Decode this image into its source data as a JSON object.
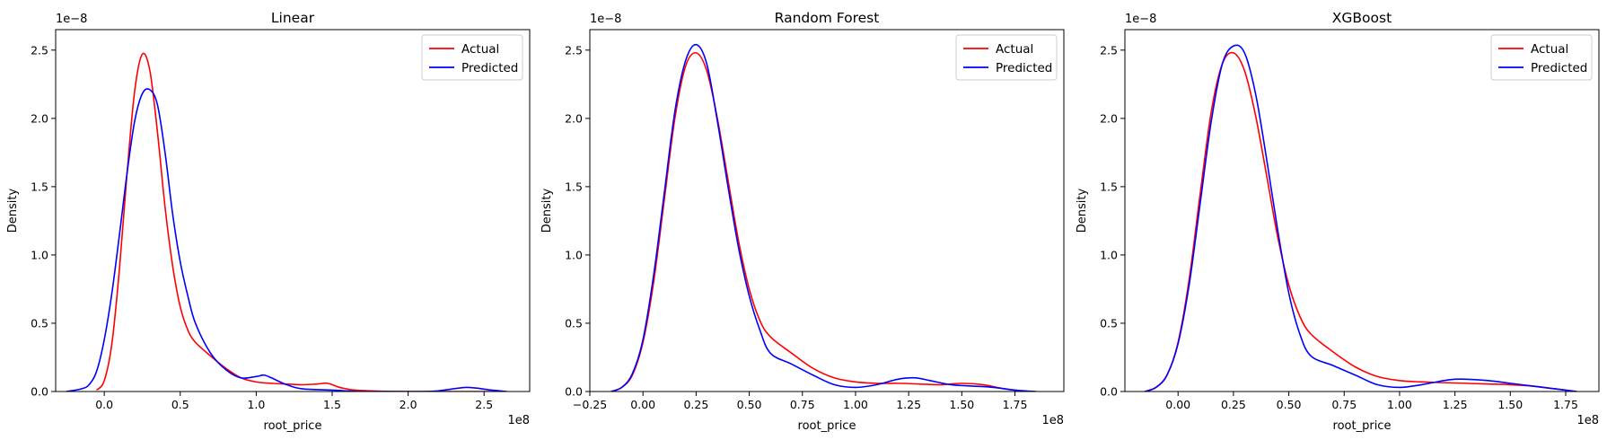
{
  "chart_data": [
    {
      "type": "line",
      "title": "Linear",
      "xlabel": "root_price",
      "ylabel": "Density",
      "x_offset_label": "1e8",
      "y_offset_label": "1e−8",
      "xlim": [
        -0.32,
        2.8
      ],
      "ylim": [
        0,
        2.65
      ],
      "xticks": [
        0.0,
        0.5,
        1.0,
        1.5,
        2.0,
        2.5
      ],
      "xtick_labels": [
        "0.0",
        "0.5",
        "1.0",
        "1.5",
        "2.0",
        "2.5"
      ],
      "yticks": [
        0.0,
        0.5,
        1.0,
        1.5,
        2.0,
        2.5
      ],
      "ytick_labels": [
        "0.0",
        "0.5",
        "1.0",
        "1.5",
        "2.0",
        "2.5"
      ],
      "legend_position": "top-right",
      "series": [
        {
          "name": "Actual",
          "color": "#ff0000",
          "x": [
            -0.05,
            0.0,
            0.05,
            0.1,
            0.15,
            0.2,
            0.25,
            0.3,
            0.35,
            0.4,
            0.45,
            0.5,
            0.55,
            0.6,
            0.7,
            0.8,
            0.9,
            1.0,
            1.1,
            1.2,
            1.3,
            1.4,
            1.47,
            1.55,
            1.65,
            1.8,
            2.0,
            2.2,
            2.4,
            2.6
          ],
          "y": [
            0.01,
            0.08,
            0.35,
            0.9,
            1.6,
            2.2,
            2.47,
            2.35,
            1.9,
            1.35,
            0.92,
            0.62,
            0.45,
            0.36,
            0.26,
            0.17,
            0.1,
            0.07,
            0.06,
            0.055,
            0.05,
            0.055,
            0.06,
            0.03,
            0.01,
            0.003,
            0.0,
            0.0,
            0.0,
            0.0
          ]
        },
        {
          "name": "Predicted",
          "color": "#0000ff",
          "x": [
            -0.25,
            -0.15,
            -0.1,
            -0.05,
            0.0,
            0.05,
            0.1,
            0.15,
            0.2,
            0.25,
            0.3,
            0.35,
            0.4,
            0.45,
            0.5,
            0.55,
            0.6,
            0.7,
            0.8,
            0.9,
            1.0,
            1.05,
            1.1,
            1.2,
            1.3,
            1.5,
            1.7,
            1.9,
            2.1,
            2.2,
            2.3,
            2.38,
            2.45,
            2.55,
            2.65
          ],
          "y": [
            0.0,
            0.02,
            0.05,
            0.15,
            0.38,
            0.72,
            1.15,
            1.6,
            1.98,
            2.18,
            2.21,
            2.1,
            1.75,
            1.3,
            0.95,
            0.7,
            0.5,
            0.28,
            0.16,
            0.1,
            0.11,
            0.12,
            0.1,
            0.05,
            0.02,
            0.01,
            0.0,
            0.0,
            0.0,
            0.005,
            0.02,
            0.03,
            0.025,
            0.01,
            0.0
          ]
        }
      ]
    },
    {
      "type": "line",
      "title": "Random Forest",
      "xlabel": "root_price",
      "ylabel": "Density",
      "x_offset_label": "1e8",
      "y_offset_label": "1e−8",
      "xlim": [
        -0.25,
        1.98
      ],
      "ylim": [
        0,
        2.65
      ],
      "xticks": [
        -0.25,
        0.0,
        0.25,
        0.5,
        0.75,
        1.0,
        1.25,
        1.5,
        1.75
      ],
      "xtick_labels": [
        "−0.25",
        "0.00",
        "0.25",
        "0.50",
        "0.75",
        "1.00",
        "1.25",
        "1.50",
        "1.75"
      ],
      "yticks": [
        0.0,
        0.5,
        1.0,
        1.5,
        2.0,
        2.5
      ],
      "ytick_labels": [
        "0.0",
        "0.5",
        "1.0",
        "1.5",
        "2.0",
        "2.5"
      ],
      "legend_position": "top-right",
      "series": [
        {
          "name": "Actual",
          "color": "#ff0000",
          "x": [
            -0.15,
            -0.1,
            -0.05,
            0.0,
            0.05,
            0.1,
            0.15,
            0.2,
            0.25,
            0.3,
            0.35,
            0.4,
            0.45,
            0.5,
            0.55,
            0.6,
            0.7,
            0.8,
            0.9,
            1.0,
            1.1,
            1.2,
            1.3,
            1.4,
            1.5,
            1.6,
            1.7,
            1.8
          ],
          "y": [
            0.0,
            0.03,
            0.12,
            0.36,
            0.8,
            1.4,
            2.0,
            2.38,
            2.48,
            2.35,
            2.0,
            1.55,
            1.1,
            0.75,
            0.52,
            0.4,
            0.28,
            0.17,
            0.1,
            0.07,
            0.06,
            0.06,
            0.055,
            0.05,
            0.06,
            0.05,
            0.02,
            0.0
          ]
        },
        {
          "name": "Predicted",
          "color": "#0000ff",
          "x": [
            -0.15,
            -0.1,
            -0.05,
            0.0,
            0.05,
            0.1,
            0.15,
            0.2,
            0.25,
            0.3,
            0.35,
            0.4,
            0.45,
            0.5,
            0.55,
            0.6,
            0.7,
            0.8,
            0.9,
            1.0,
            1.1,
            1.2,
            1.28,
            1.35,
            1.45,
            1.55,
            1.65,
            1.75,
            1.85
          ],
          "y": [
            0.0,
            0.03,
            0.13,
            0.38,
            0.85,
            1.45,
            2.05,
            2.42,
            2.54,
            2.4,
            1.98,
            1.5,
            1.05,
            0.7,
            0.45,
            0.28,
            0.2,
            0.12,
            0.05,
            0.03,
            0.05,
            0.09,
            0.1,
            0.08,
            0.05,
            0.04,
            0.03,
            0.01,
            0.0
          ]
        }
      ]
    },
    {
      "type": "line",
      "title": "XGBoost",
      "xlabel": "root_price",
      "ylabel": "Density",
      "x_offset_label": "1e8",
      "y_offset_label": "1e−8",
      "xlim": [
        -0.24,
        1.9
      ],
      "ylim": [
        0,
        2.65
      ],
      "xticks": [
        0.0,
        0.25,
        0.5,
        0.75,
        1.0,
        1.25,
        1.5,
        1.75
      ],
      "xtick_labels": [
        "0.00",
        "0.25",
        "0.50",
        "0.75",
        "1.00",
        "1.25",
        "1.50",
        "1.75"
      ],
      "yticks": [
        0.0,
        0.5,
        1.0,
        1.5,
        2.0,
        2.5
      ],
      "ytick_labels": [
        "0.0",
        "0.5",
        "1.0",
        "1.5",
        "2.0",
        "2.5"
      ],
      "legend_position": "top-right",
      "series": [
        {
          "name": "Actual",
          "color": "#ff0000",
          "x": [
            -0.15,
            -0.1,
            -0.05,
            0.0,
            0.05,
            0.1,
            0.15,
            0.2,
            0.25,
            0.3,
            0.35,
            0.4,
            0.45,
            0.5,
            0.55,
            0.6,
            0.7,
            0.8,
            0.9,
            1.0,
            1.1,
            1.2,
            1.3,
            1.4,
            1.5,
            1.6,
            1.7,
            1.8
          ],
          "y": [
            0.0,
            0.03,
            0.12,
            0.36,
            0.82,
            1.45,
            2.05,
            2.4,
            2.48,
            2.35,
            2.02,
            1.58,
            1.13,
            0.78,
            0.55,
            0.42,
            0.29,
            0.18,
            0.11,
            0.08,
            0.07,
            0.065,
            0.06,
            0.055,
            0.05,
            0.04,
            0.02,
            0.0
          ]
        },
        {
          "name": "Predicted",
          "color": "#0000ff",
          "x": [
            -0.15,
            -0.1,
            -0.05,
            0.0,
            0.05,
            0.1,
            0.15,
            0.2,
            0.25,
            0.3,
            0.35,
            0.4,
            0.45,
            0.5,
            0.55,
            0.6,
            0.7,
            0.8,
            0.9,
            1.0,
            1.1,
            1.2,
            1.25,
            1.3,
            1.4,
            1.5,
            1.6,
            1.7,
            1.8
          ],
          "y": [
            0.0,
            0.03,
            0.12,
            0.35,
            0.78,
            1.38,
            1.98,
            2.4,
            2.53,
            2.48,
            2.18,
            1.7,
            1.18,
            0.72,
            0.42,
            0.26,
            0.19,
            0.12,
            0.05,
            0.03,
            0.05,
            0.08,
            0.09,
            0.09,
            0.08,
            0.06,
            0.04,
            0.02,
            0.0
          ]
        }
      ]
    }
  ]
}
